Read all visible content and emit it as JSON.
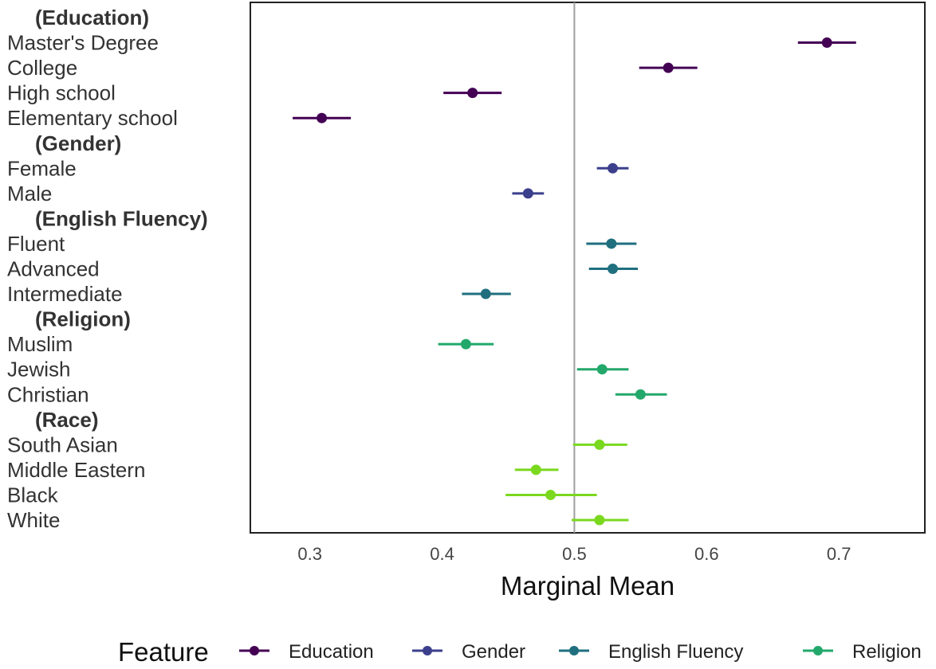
{
  "chart_data": {
    "type": "scatter",
    "subtype": "point-range (marginal means with confidence intervals)",
    "xlabel": "Marginal Mean",
    "ylabel": "",
    "xlim": [
      0.255,
      0.765
    ],
    "xticks": [
      0.3,
      0.4,
      0.5,
      0.6,
      0.7
    ],
    "xtick_labels": [
      "0.3",
      "0.4",
      "0.5",
      "0.6",
      "0.7"
    ],
    "reference_line": 0.5,
    "grid": false,
    "legend_title": "Feature",
    "legend_position": "bottom",
    "legend": [
      {
        "name": "Education",
        "color": "#440154"
      },
      {
        "name": "Gender",
        "color": "#3b3f8c"
      },
      {
        "name": "English Fluency",
        "color": "#1f6f7f"
      },
      {
        "name": "Religion",
        "color": "#22a86a"
      }
    ],
    "rows": [
      {
        "label": "(Education)",
        "header": true
      },
      {
        "label": "Master's Degree",
        "group": "Education",
        "mean": 0.691,
        "low": 0.669,
        "high": 0.713,
        "color": "#440154"
      },
      {
        "label": "College",
        "group": "Education",
        "mean": 0.571,
        "low": 0.549,
        "high": 0.593,
        "color": "#440154"
      },
      {
        "label": "High school",
        "group": "Education",
        "mean": 0.423,
        "low": 0.401,
        "high": 0.445,
        "color": "#440154"
      },
      {
        "label": "Elementary school",
        "group": "Education",
        "mean": 0.309,
        "low": 0.287,
        "high": 0.331,
        "color": "#440154"
      },
      {
        "label": "(Gender)",
        "header": true
      },
      {
        "label": "Female",
        "group": "Gender",
        "mean": 0.529,
        "low": 0.517,
        "high": 0.541,
        "color": "#3b3f8c"
      },
      {
        "label": "Male",
        "group": "Gender",
        "mean": 0.465,
        "low": 0.453,
        "high": 0.477,
        "color": "#3b3f8c"
      },
      {
        "label": "(English Fluency)",
        "header": true
      },
      {
        "label": "Fluent",
        "group": "English Fluency",
        "mean": 0.528,
        "low": 0.509,
        "high": 0.547,
        "color": "#1f6f7f"
      },
      {
        "label": "Advanced",
        "group": "English Fluency",
        "mean": 0.529,
        "low": 0.511,
        "high": 0.548,
        "color": "#1f6f7f"
      },
      {
        "label": "Intermediate",
        "group": "English Fluency",
        "mean": 0.433,
        "low": 0.415,
        "high": 0.452,
        "color": "#1f6f7f"
      },
      {
        "label": "(Religion)",
        "header": true
      },
      {
        "label": "Muslim",
        "group": "Religion",
        "mean": 0.418,
        "low": 0.397,
        "high": 0.439,
        "color": "#22a86a"
      },
      {
        "label": "Jewish",
        "group": "Religion",
        "mean": 0.521,
        "low": 0.502,
        "high": 0.541,
        "color": "#22a86a"
      },
      {
        "label": "Christian",
        "group": "Religion",
        "mean": 0.55,
        "low": 0.531,
        "high": 0.57,
        "color": "#22a86a"
      },
      {
        "label": "(Race)",
        "header": true
      },
      {
        "label": "South Asian",
        "group": "Race",
        "mean": 0.519,
        "low": 0.499,
        "high": 0.54,
        "color": "#7ad81e"
      },
      {
        "label": "Middle Eastern",
        "group": "Race",
        "mean": 0.471,
        "low": 0.455,
        "high": 0.488,
        "color": "#7ad81e"
      },
      {
        "label": "Black",
        "group": "Race",
        "mean": 0.482,
        "low": 0.448,
        "high": 0.517,
        "color": "#7ad81e"
      },
      {
        "label": "White",
        "group": "Race",
        "mean": 0.519,
        "low": 0.498,
        "high": 0.541,
        "color": "#7ad81e"
      }
    ]
  }
}
